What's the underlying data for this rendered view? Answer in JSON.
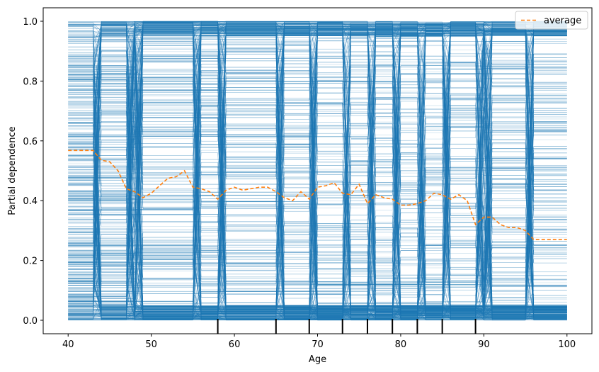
{
  "chart_data": {
    "type": "line",
    "xlabel": "Age",
    "ylabel": "Partial dependence",
    "xlim": [
      37,
      103
    ],
    "ylim": [
      -0.045,
      1.045
    ],
    "xticks": [
      40,
      50,
      60,
      70,
      80,
      90,
      100
    ],
    "yticks": [
      0.0,
      0.2,
      0.4,
      0.6,
      0.8,
      1.0
    ],
    "xtick_labels": [
      "40",
      "50",
      "60",
      "70",
      "80",
      "90",
      "100"
    ],
    "ytick_labels": [
      "0.0",
      "0.2",
      "0.4",
      "0.6",
      "0.8",
      "1.0"
    ],
    "legend": {
      "placement": "top-right",
      "entries": [
        "average"
      ]
    },
    "grid": false,
    "series": [
      {
        "name": "average",
        "style": "dashed",
        "color": "#ff7f0e",
        "x": [
          40,
          43,
          44,
          45,
          46,
          47,
          48,
          49,
          50,
          51,
          52,
          53,
          54,
          55,
          56,
          57,
          58,
          59,
          60,
          61,
          62,
          63,
          64,
          65,
          66,
          67,
          68,
          69,
          70,
          71,
          72,
          73,
          74,
          75,
          76,
          77,
          78,
          79,
          80,
          81,
          82,
          83,
          84,
          85,
          86,
          87,
          88,
          89,
          90,
          91,
          92,
          93,
          94,
          95,
          96,
          100
        ],
        "values": [
          0.568,
          0.568,
          0.535,
          0.53,
          0.5,
          0.44,
          0.43,
          0.41,
          0.425,
          0.45,
          0.475,
          0.48,
          0.5,
          0.445,
          0.44,
          0.43,
          0.405,
          0.435,
          0.445,
          0.435,
          0.44,
          0.445,
          0.445,
          0.43,
          0.41,
          0.4,
          0.43,
          0.405,
          0.445,
          0.45,
          0.46,
          0.425,
          0.42,
          0.455,
          0.39,
          0.42,
          0.41,
          0.405,
          0.385,
          0.385,
          0.39,
          0.4,
          0.425,
          0.42,
          0.405,
          0.42,
          0.4,
          0.32,
          0.345,
          0.345,
          0.32,
          0.31,
          0.31,
          0.3,
          0.27,
          0.27
        ]
      },
      {
        "name": "",
        "style": "individual",
        "color": "#1f77b4",
        "count": 1000,
        "step_ages": [
          43,
          47,
          48,
          55,
          58,
          65,
          69,
          73,
          76,
          79,
          82,
          85,
          89,
          90,
          95
        ]
      }
    ],
    "rug": {
      "color": "#000000",
      "x": [
        58,
        65,
        69,
        73,
        76,
        79,
        82,
        85,
        89
      ]
    }
  }
}
